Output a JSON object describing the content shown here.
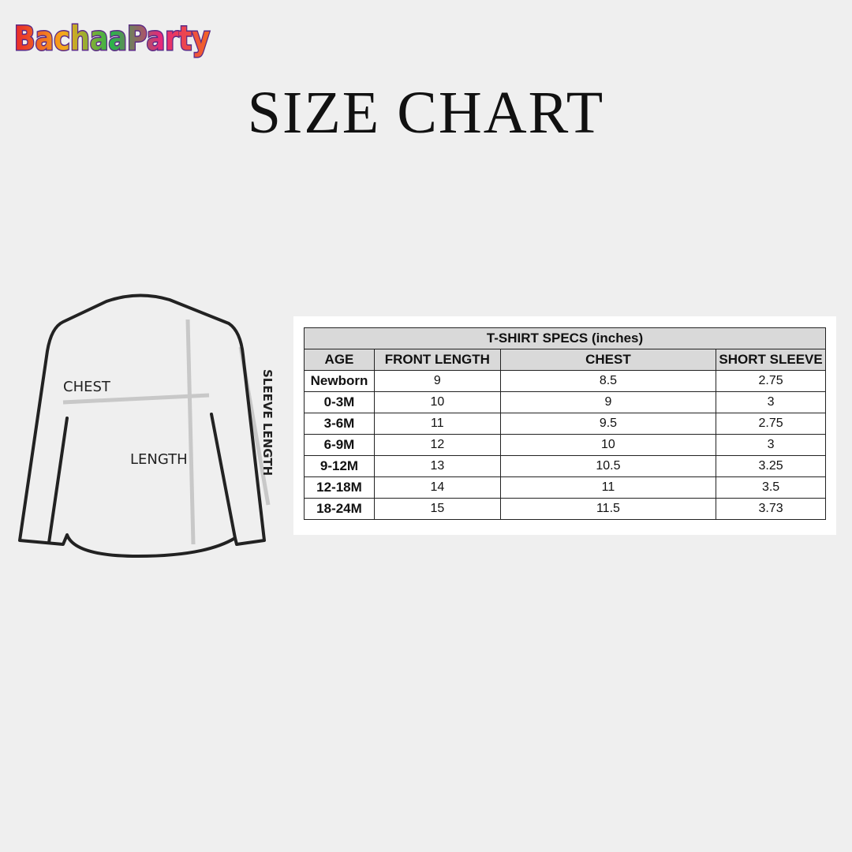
{
  "header": {
    "logo": "BachaaParty",
    "title": "SIZE CHART"
  },
  "diagram": {
    "chest_label": "CHEST",
    "length_label": "LENGTH",
    "sleeve_label": "SLEEVE LENGTH"
  },
  "table": {
    "title": "T-SHIRT SPECS (inches)",
    "columns": [
      "AGE",
      "FRONT LENGTH",
      "CHEST",
      "SHORT SLEEVE"
    ],
    "rows": [
      [
        "Newborn",
        9,
        8.5,
        2.75
      ],
      [
        "0-3M",
        10,
        9,
        3
      ],
      [
        "3-6M",
        11,
        9.5,
        2.75
      ],
      [
        "6-9M",
        12,
        10,
        3
      ],
      [
        "9-12M",
        13,
        10.5,
        3.25
      ],
      [
        "12-18M",
        14,
        11,
        3.5
      ],
      [
        "18-24M",
        15,
        11.5,
        3.73
      ]
    ]
  }
}
